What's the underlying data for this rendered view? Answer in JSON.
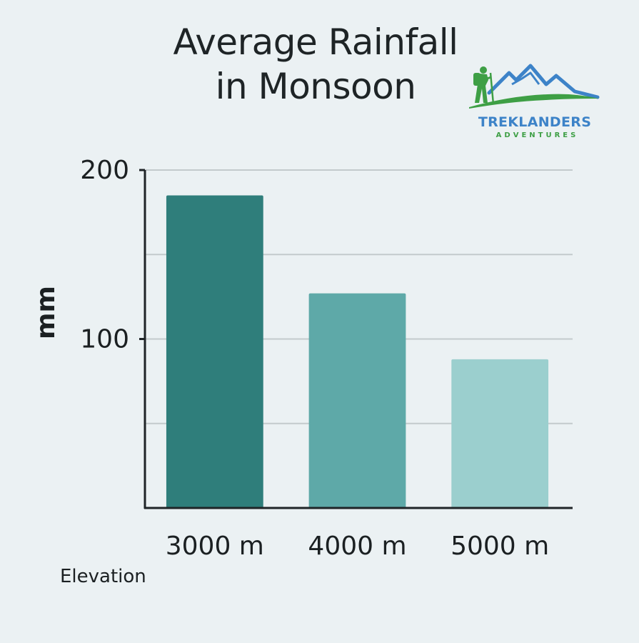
{
  "title_lines": [
    "Average Rainfall",
    "in Monsoon"
  ],
  "logo": {
    "name": "TREKLANDERS",
    "tagline": "ADVENTURES",
    "colors": {
      "mountain": "#3d83c8",
      "ground": "#3e9f45",
      "hiker": "#3e9f45"
    }
  },
  "chart_data": {
    "type": "bar",
    "categories": [
      "3000 m",
      "4000 m",
      "5000 m"
    ],
    "values": [
      185,
      127,
      88
    ],
    "xlabel": "Elevation",
    "ylabel": "mm",
    "ylim": [
      0,
      200
    ],
    "yticks": [
      100,
      200
    ],
    "grid": true,
    "bar_colors": [
      "#2f7e7b",
      "#5ea9a8",
      "#9bcfce"
    ]
  }
}
